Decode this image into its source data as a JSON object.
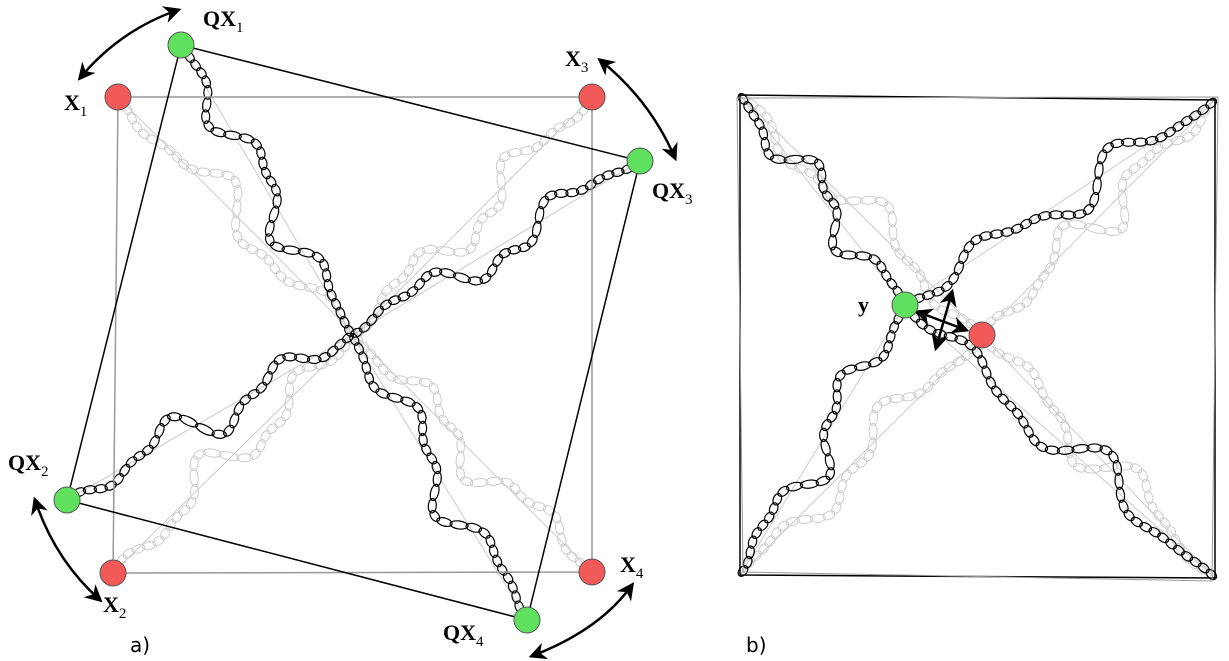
{
  "labels": [
    {
      "main": "QX",
      "sub": "1"
    },
    {
      "main": "X",
      "sub": "1"
    },
    {
      "main": "X",
      "sub": "3"
    },
    {
      "main": "QX",
      "sub": "3"
    },
    {
      "main": "QX",
      "sub": "2"
    },
    {
      "main": "X",
      "sub": "2"
    },
    {
      "main": "X",
      "sub": "4"
    },
    {
      "main": "QX",
      "sub": "4"
    },
    {
      "main": "y"
    }
  ],
  "panels": [
    "a)",
    "b)"
  ]
}
